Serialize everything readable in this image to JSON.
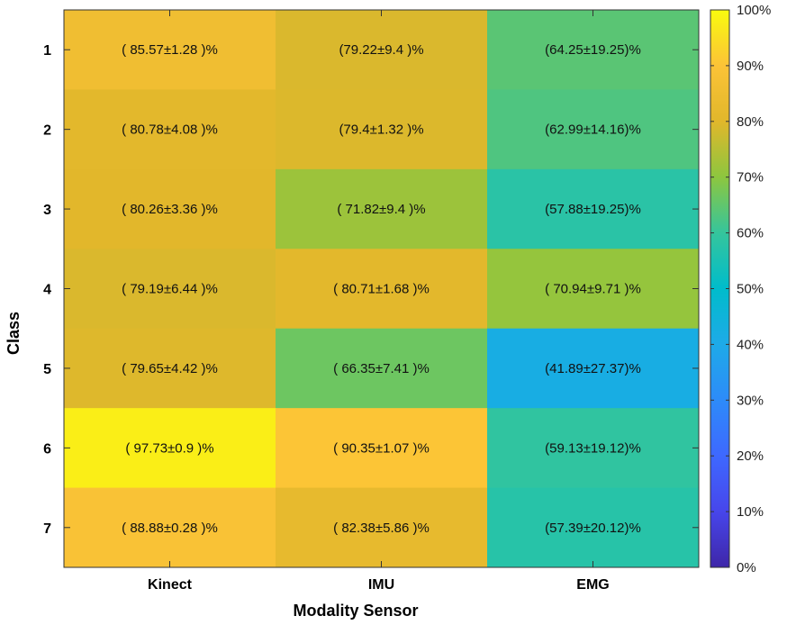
{
  "chart_data": {
    "type": "heatmap",
    "title": "",
    "xlabel": "Modality Sensor",
    "ylabel": "Class",
    "x_categories": [
      "Kinect",
      "IMU",
      "EMG"
    ],
    "y_categories": [
      "1",
      "2",
      "3",
      "4",
      "5",
      "6",
      "7"
    ],
    "values": [
      [
        85.57,
        79.22,
        64.25
      ],
      [
        80.78,
        79.4,
        62.99
      ],
      [
        80.26,
        71.82,
        57.88
      ],
      [
        79.19,
        80.71,
        70.94
      ],
      [
        79.65,
        66.35,
        41.89
      ],
      [
        97.73,
        90.35,
        59.13
      ],
      [
        88.88,
        82.38,
        57.39
      ]
    ],
    "cell_labels": [
      [
        "( 85.57±1.28 )%",
        "(79.22±9.4 )%",
        "(64.25±19.25)%"
      ],
      [
        "( 80.78±4.08 )%",
        "(79.4±1.32 )%",
        "(62.99±14.16)%"
      ],
      [
        "( 80.26±3.36 )%",
        "( 71.82±9.4 )%",
        "(57.88±19.25)%"
      ],
      [
        "( 79.19±6.44 )%",
        "( 80.71±1.68 )%",
        "( 70.94±9.71 )%"
      ],
      [
        "( 79.65±4.42 )%",
        "( 66.35±7.41 )%",
        "(41.89±27.37)%"
      ],
      [
        "( 97.73±0.9 )%",
        "( 90.35±1.07 )%",
        "(59.13±19.12)%"
      ],
      [
        "( 88.88±0.28 )%",
        "( 82.38±5.86 )%",
        "(57.39±20.12)%"
      ]
    ],
    "colorbar": {
      "colormap": "parula",
      "range": [
        0,
        100
      ],
      "ticks": [
        0,
        10,
        20,
        30,
        40,
        50,
        60,
        70,
        80,
        90,
        100
      ],
      "tick_labels": [
        "0%",
        "10%",
        "20%",
        "30%",
        "40%",
        "50%",
        "60%",
        "70%",
        "80%",
        "90%",
        "100%"
      ]
    },
    "grid": false
  }
}
